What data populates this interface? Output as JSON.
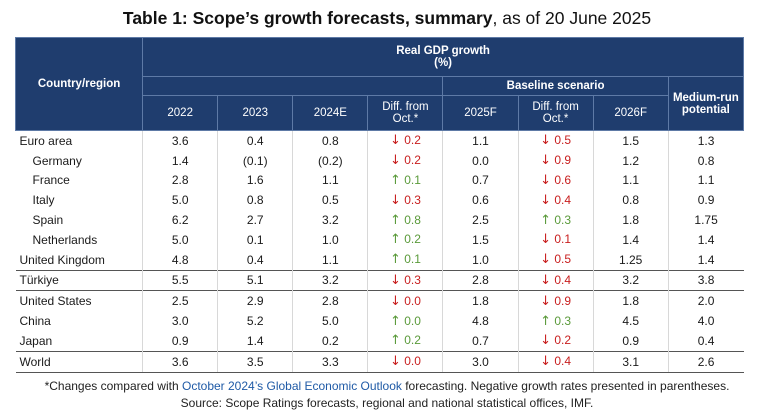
{
  "title": {
    "bold": "Table 1: Scope’s growth forecasts, summary",
    "normal": ", as of 20 June 2025"
  },
  "header": {
    "country_region": "Country/region",
    "real_gdp": "Real GDP growth",
    "pct": "(%)",
    "baseline": "Baseline scenario",
    "medium_run": "Medium-run potential",
    "cols": [
      "2022",
      "2023",
      "2024E",
      "Diff. from Oct.*",
      "2025F",
      "Diff. from Oct.*",
      "2026F"
    ]
  },
  "rows": [
    {
      "name": "Euro area",
      "sub": false,
      "v2022": "3.6",
      "v2023": "0.4",
      "v2024": "0.8",
      "d1": {
        "dir": "down",
        "val": "0.2"
      },
      "v2025": "1.1",
      "d2": {
        "dir": "down",
        "val": "0.5"
      },
      "v2026": "1.5",
      "mr": "1.3"
    },
    {
      "name": "Germany",
      "sub": true,
      "v2022": "1.4",
      "v2023": "(0.1)",
      "v2024": "(0.2)",
      "d1": {
        "dir": "down",
        "val": "0.2"
      },
      "v2025": "0.0",
      "d2": {
        "dir": "down",
        "val": "0.9"
      },
      "v2026": "1.2",
      "mr": "0.8"
    },
    {
      "name": "France",
      "sub": true,
      "v2022": "2.8",
      "v2023": "1.6",
      "v2024": "1.1",
      "d1": {
        "dir": "up",
        "val": "0.1"
      },
      "v2025": "0.7",
      "d2": {
        "dir": "down",
        "val": "0.6"
      },
      "v2026": "1.1",
      "mr": "1.1"
    },
    {
      "name": "Italy",
      "sub": true,
      "v2022": "5.0",
      "v2023": "0.8",
      "v2024": "0.5",
      "d1": {
        "dir": "down",
        "val": "0.3"
      },
      "v2025": "0.6",
      "d2": {
        "dir": "down",
        "val": "0.4"
      },
      "v2026": "0.8",
      "mr": "0.9"
    },
    {
      "name": "Spain",
      "sub": true,
      "v2022": "6.2",
      "v2023": "2.7",
      "v2024": "3.2",
      "d1": {
        "dir": "up",
        "val": "0.8"
      },
      "v2025": "2.5",
      "d2": {
        "dir": "up",
        "val": "0.3"
      },
      "v2026": "1.8",
      "mr": "1.75"
    },
    {
      "name": "Netherlands",
      "sub": true,
      "v2022": "5.0",
      "v2023": "0.1",
      "v2024": "1.0",
      "d1": {
        "dir": "up",
        "val": "0.2"
      },
      "v2025": "1.5",
      "d2": {
        "dir": "down",
        "val": "0.1"
      },
      "v2026": "1.4",
      "mr": "1.4"
    },
    {
      "name": "United Kingdom",
      "sub": false,
      "v2022": "4.8",
      "v2023": "0.4",
      "v2024": "1.1",
      "d1": {
        "dir": "up",
        "val": "0.1"
      },
      "v2025": "1.0",
      "d2": {
        "dir": "down",
        "val": "0.5"
      },
      "v2026": "1.25",
      "mr": "1.4"
    },
    {
      "name": "Türkiye",
      "sub": false,
      "sep": true,
      "v2022": "5.5",
      "v2023": "5.1",
      "v2024": "3.2",
      "d1": {
        "dir": "down",
        "val": "0.3"
      },
      "v2025": "2.8",
      "d2": {
        "dir": "down",
        "val": "0.4"
      },
      "v2026": "3.2",
      "mr": "3.8"
    },
    {
      "name": "United States",
      "sub": false,
      "sep": true,
      "v2022": "2.5",
      "v2023": "2.9",
      "v2024": "2.8",
      "d1": {
        "dir": "down",
        "val": "0.0"
      },
      "v2025": "1.8",
      "d2": {
        "dir": "down",
        "val": "0.9"
      },
      "v2026": "1.8",
      "mr": "2.0"
    },
    {
      "name": "China",
      "sub": false,
      "v2022": "3.0",
      "v2023": "5.2",
      "v2024": "5.0",
      "d1": {
        "dir": "up",
        "val": "0.0"
      },
      "v2025": "4.8",
      "d2": {
        "dir": "up",
        "val": "0.3"
      },
      "v2026": "4.5",
      "mr": "4.0"
    },
    {
      "name": "Japan",
      "sub": false,
      "v2022": "0.9",
      "v2023": "1.4",
      "v2024": "0.2",
      "d1": {
        "dir": "up",
        "val": "0.2"
      },
      "v2025": "0.7",
      "d2": {
        "dir": "down",
        "val": "0.2"
      },
      "v2026": "0.9",
      "mr": "0.4"
    },
    {
      "name": "World",
      "sub": false,
      "sep": true,
      "last": true,
      "v2022": "3.6",
      "v2023": "3.5",
      "v2024": "3.3",
      "d1": {
        "dir": "down",
        "val": "0.0"
      },
      "v2025": "3.0",
      "d2": {
        "dir": "down",
        "val": "0.4"
      },
      "v2026": "3.1",
      "mr": "2.6"
    }
  ],
  "arrows": {
    "down": "↓",
    "up": "↑"
  },
  "colors": {
    "header_bg": "#1f3d6e",
    "down": "#c81e1e",
    "up": "#5a9a3a",
    "link": "#1f5aa6"
  },
  "footnote": {
    "pre": "*Changes compared with ",
    "link": "October 2024’s Global Economic Outlook",
    "post": " forecasting. Negative growth rates presented in parentheses.",
    "source": "Source: Scope Ratings forecasts, regional and national statistical offices, IMF."
  }
}
